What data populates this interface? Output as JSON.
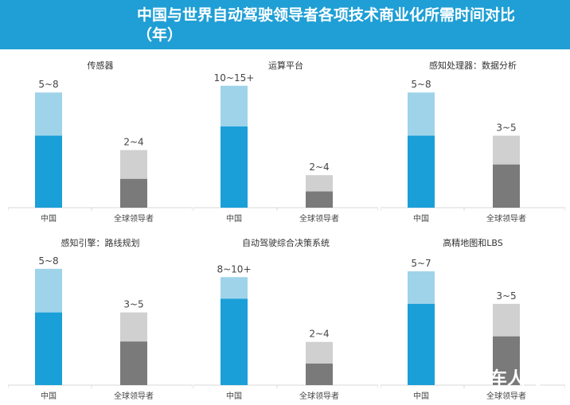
{
  "title": "中国与世界自动驾驶领导者各项技术商业化所需时间对比（年）",
  "colors": {
    "china_dark": "#1a9fd8",
    "china_light": "#9fd3ea",
    "global_dark": "#7a7a7a",
    "global_light": "#d1d0d1",
    "header": "#1f9fd5"
  },
  "watermark": "车人驾",
  "chart_data": [
    {
      "type": "bar",
      "title": "传感器",
      "categories": [
        "中国",
        "全球领导者"
      ],
      "ranges": [
        [
          5,
          8
        ],
        [
          2,
          4
        ]
      ],
      "labels": [
        "5~8",
        "2~4"
      ],
      "ymax": 10.5
    },
    {
      "type": "bar",
      "title": "运算平台",
      "categories": [
        "中国",
        "全球领导者"
      ],
      "ranges": [
        [
          10,
          15
        ],
        [
          2,
          4
        ]
      ],
      "labels": [
        "10~15+",
        "2~4"
      ],
      "ymax": 18.6
    },
    {
      "type": "bar",
      "title": "感知处理器：数据分析",
      "categories": [
        "中国",
        "全球领导者"
      ],
      "ranges": [
        [
          5,
          8
        ],
        [
          3,
          5
        ]
      ],
      "labels": [
        "5~8",
        "3~5"
      ],
      "ymax": 10.5
    },
    {
      "type": "bar",
      "title": "感知引擎：路线规划",
      "categories": [
        "中国",
        "全球领导者"
      ],
      "ranges": [
        [
          5,
          8
        ],
        [
          3,
          5
        ]
      ],
      "labels": [
        "5~8",
        "3~5"
      ],
      "ymax": 10.4
    },
    {
      "type": "bar",
      "title": "自动驾驶综合决策系统",
      "categories": [
        "中国",
        "全球领导者"
      ],
      "ranges": [
        [
          8,
          10
        ],
        [
          2,
          4
        ]
      ],
      "labels": [
        "8~10+",
        "2~4"
      ],
      "ymax": 14
    },
    {
      "type": "bar",
      "title": "高精地图和LBS",
      "categories": [
        "中国",
        "全球领导者"
      ],
      "ranges": [
        [
          5,
          7
        ],
        [
          3,
          5
        ]
      ],
      "labels": [
        "5~7",
        "3~5"
      ],
      "ymax": 9.3
    }
  ]
}
